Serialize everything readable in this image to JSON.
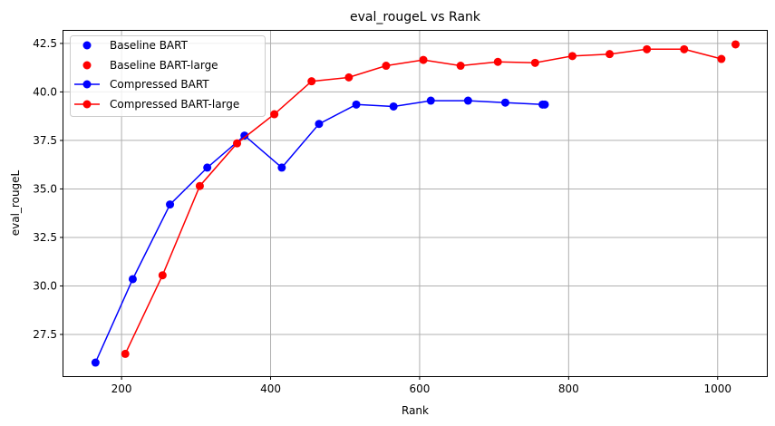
{
  "chart_data": {
    "type": "line",
    "title": "eval_rougeL vs Rank",
    "xlabel": "Rank",
    "ylabel": "eval_rougeL",
    "xlim": [
      122,
      1066
    ],
    "ylim": [
      25.35,
      43.15
    ],
    "xticks": [
      200,
      400,
      600,
      800,
      1000
    ],
    "xtick_labels": [
      "200",
      "400",
      "600",
      "800",
      "1000"
    ],
    "yticks": [
      27.5,
      30.0,
      32.5,
      35.0,
      37.5,
      40.0,
      42.5
    ],
    "ytick_labels": [
      "27.5",
      "30.0",
      "32.5",
      "35.0",
      "37.5",
      "40.0",
      "42.5"
    ],
    "grid": true,
    "legend_position": "top-left",
    "baseline_points": [
      {
        "name": "Baseline BART",
        "color": "#0000ff",
        "x": 768,
        "y": 39.35
      },
      {
        "name": "Baseline BART-large",
        "color": "#ff0000",
        "x": 1024,
        "y": 42.45
      }
    ],
    "series": [
      {
        "name": "Compressed BART",
        "color": "#0000ff",
        "x": [
          165,
          215,
          265,
          315,
          365,
          415,
          465,
          515,
          565,
          615,
          665,
          715,
          765
        ],
        "y": [
          26.05,
          30.35,
          34.2,
          36.1,
          37.75,
          36.1,
          38.35,
          39.35,
          39.25,
          39.55,
          39.55,
          39.45,
          39.35
        ]
      },
      {
        "name": "Compressed BART-large",
        "color": "#ff0000",
        "x": [
          205,
          255,
          305,
          355,
          405,
          455,
          505,
          555,
          605,
          655,
          705,
          755,
          805,
          855,
          905,
          955,
          1005
        ],
        "y": [
          26.5,
          30.55,
          35.15,
          37.35,
          38.85,
          40.55,
          40.75,
          41.35,
          41.65,
          41.35,
          41.55,
          41.5,
          41.85,
          41.95,
          42.2,
          42.2,
          41.7
        ]
      }
    ]
  }
}
